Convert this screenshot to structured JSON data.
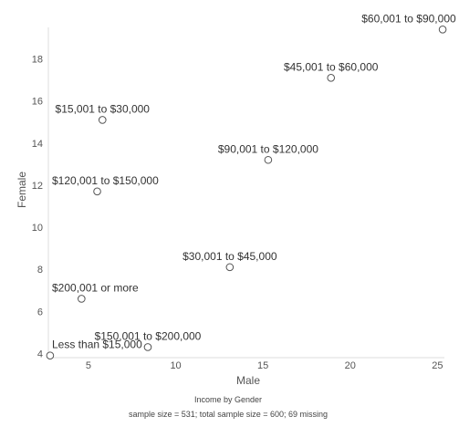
{
  "chart_data": {
    "type": "scatter",
    "title": "Income by Gender",
    "subtitle": "sample size = 531; total sample size = 600; 69 missing",
    "xlabel": "Male",
    "ylabel": "Female",
    "xlim": [
      2.7,
      25.4
    ],
    "ylim": [
      3.8,
      19.5
    ],
    "xticks": [
      5,
      10,
      15,
      20,
      25
    ],
    "yticks": [
      4,
      6,
      8,
      10,
      12,
      14,
      16,
      18
    ],
    "grid": false,
    "points": [
      {
        "label": "$60,001 to $90,000",
        "x": 25.3,
        "y": 19.4
      },
      {
        "label": "$45,001 to $60,000",
        "x": 18.9,
        "y": 17.1
      },
      {
        "label": "$15,001 to $30,000",
        "x": 5.8,
        "y": 15.1
      },
      {
        "label": "$90,001 to $120,000",
        "x": 15.3,
        "y": 13.2
      },
      {
        "label": "$120,001 to $150,000",
        "x": 5.5,
        "y": 11.7
      },
      {
        "label": "$30,001 to $45,000",
        "x": 13.1,
        "y": 8.1
      },
      {
        "label": "$200,001 or more",
        "x": 4.6,
        "y": 6.6
      },
      {
        "label": "$150,001 to $200,000",
        "x": 8.4,
        "y": 4.3
      },
      {
        "label": "Less than $15,000",
        "x": 2.8,
        "y": 3.9
      }
    ],
    "colors": {
      "marker_stroke": "#555555",
      "axis": "#dddddd",
      "text": "#333333"
    }
  }
}
